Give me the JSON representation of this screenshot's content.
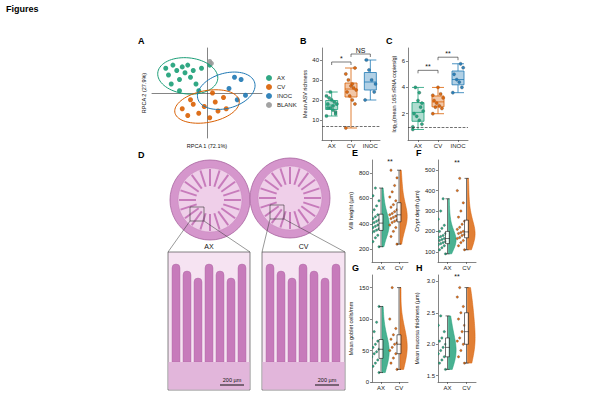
{
  "title": "Figures",
  "images": {
    "panel": "D",
    "labels": [
      "AX",
      "CV"
    ],
    "scale_bar": "200 µm"
  },
  "chart_data": [
    {
      "panel": "A",
      "type": "scatter",
      "x_label": "RPCA 1 (72.1%)",
      "y_label": "RPCA 2 (27.9%)",
      "xlim": [
        -1,
        1
      ],
      "ylim": [
        -1,
        1
      ],
      "xticks": [],
      "yticks": [],
      "tick_labels": false,
      "grid": false,
      "legend": "right",
      "series": [
        {
          "name": "AX",
          "color": "#1b9e77",
          "x": [
            -0.75,
            -0.7,
            -0.62,
            -0.55,
            -0.5,
            -0.45,
            -0.4,
            -0.35,
            -0.3,
            -0.25,
            -0.65,
            -0.2,
            -0.1,
            -0.5,
            -0.15,
            0.05
          ],
          "y": [
            0.55,
            0.4,
            0.62,
            0.5,
            0.3,
            0.58,
            0.45,
            0.62,
            0.35,
            0.5,
            0.2,
            0.2,
            0.55,
            0.05,
            0.05,
            0.62
          ],
          "ellipse": {
            "cx": -0.35,
            "cy": 0.38,
            "a": 0.55,
            "b": 0.4,
            "angle": -10
          }
        },
        {
          "name": "CV",
          "color": "#d95f02",
          "x": [
            -0.45,
            -0.35,
            -0.25,
            -0.15,
            -0.05,
            0.05,
            0.15,
            0.2,
            0.3,
            0.35,
            -0.3,
            0.1
          ],
          "y": [
            -0.35,
            -0.5,
            -0.25,
            -0.45,
            -0.3,
            -0.55,
            -0.2,
            -0.4,
            -0.1,
            -0.35,
            -0.15,
            0.0
          ],
          "ellipse": {
            "cx": 0.0,
            "cy": -0.3,
            "a": 0.6,
            "b": 0.35,
            "angle": 15
          }
        },
        {
          "name": "INOC",
          "color": "#1f78b4",
          "x": [
            0.4,
            0.55,
            0.62,
            0.7,
            0.5
          ],
          "y": [
            0.1,
            -0.15,
            0.3,
            -0.05,
            0.35
          ],
          "ellipse": {
            "cx": 0.35,
            "cy": 0.05,
            "a": 0.55,
            "b": 0.38,
            "angle": 25
          }
        },
        {
          "name": "BLANK",
          "color": "#999999",
          "x": [
            0.05,
            0.08
          ],
          "y": [
            0.7,
            0.66
          ]
        }
      ]
    },
    {
      "panel": "B",
      "type": "boxplot",
      "y_label": "Mean ASV richness",
      "categories": [
        "AX",
        "CV",
        "INOC"
      ],
      "colors": [
        "#1b9e77",
        "#d95f02",
        "#1f78b4"
      ],
      "values": [
        [
          12,
          14,
          15,
          16,
          18,
          18,
          19,
          20,
          21,
          22,
          13,
          17,
          24,
          16
        ],
        [
          6,
          18,
          20,
          22,
          24,
          25,
          26,
          27,
          30,
          33,
          36,
          28
        ],
        [
          20,
          24,
          30,
          35,
          40,
          28
        ]
      ],
      "hline": 7,
      "ylim": [
        0,
        46
      ],
      "yticks": [
        10,
        20,
        30,
        40
      ],
      "grid": false,
      "annotations": [
        {
          "text": "*",
          "from": "AX",
          "to": "CV",
          "y": 39
        },
        {
          "text": "NS",
          "from": "CV",
          "to": "INOC",
          "y": 43
        }
      ]
    },
    {
      "panel": "C",
      "type": "boxplot",
      "y_label": "log₁₀(mean 16S rRNA copies/g)",
      "categories": [
        "AX",
        "CV",
        "INOC"
      ],
      "colors": [
        "#1b9e77",
        "#d95f02",
        "#1f78b4"
      ],
      "values": [
        [
          0.8,
          1.2,
          1.5,
          1.8,
          2.0,
          2.2,
          2.5,
          3.0,
          4.0,
          1.0,
          2.8,
          3.6
        ],
        [
          2.0,
          2.4,
          2.6,
          2.8,
          3.0,
          3.2,
          3.5,
          4.0,
          2.5,
          3.4
        ],
        [
          3.6,
          4.0,
          4.4,
          4.6,
          5.0,
          5.5,
          5.8
        ]
      ],
      "hline": 1,
      "ylim": [
        0,
        7
      ],
      "yticks": [
        2,
        4,
        6
      ],
      "grid": false,
      "annotations": [
        {
          "text": "**",
          "from": "AX",
          "to": "CV",
          "y": 5.3
        },
        {
          "text": "**",
          "from": "CV",
          "to": "INOC",
          "y": 6.3
        }
      ]
    },
    {
      "panel": "E",
      "type": "raincloud",
      "y_label": "Villi height (µm)",
      "categories": [
        "AX",
        "CV"
      ],
      "colors": [
        "#1b9e77",
        "#d95f02"
      ],
      "values": [
        [
          220,
          260,
          290,
          310,
          330,
          340,
          350,
          360,
          370,
          380,
          390,
          400,
          410,
          420,
          430,
          440,
          455,
          470,
          490,
          510,
          540,
          580,
          620,
          680
        ],
        [
          240,
          300,
          340,
          370,
          390,
          410,
          420,
          430,
          440,
          450,
          460,
          470,
          480,
          495,
          510,
          530,
          550,
          580,
          610,
          650,
          700,
          760,
          820
        ]
      ],
      "ylim": [
        100,
        900
      ],
      "yticks": [
        200,
        400,
        600,
        800
      ],
      "grid": false,
      "annotations": [
        {
          "text": "**",
          "y": 860
        }
      ]
    },
    {
      "panel": "F",
      "type": "raincloud",
      "y_label": "Crypt depth (µm)",
      "categories": [
        "AX",
        "CV"
      ],
      "colors": [
        "#1b9e77",
        "#d95f02"
      ],
      "values": [
        [
          90,
          110,
          120,
          130,
          135,
          140,
          145,
          150,
          155,
          160,
          165,
          170,
          175,
          180,
          190,
          200,
          215,
          230,
          260,
          300,
          360
        ],
        [
          110,
          130,
          145,
          155,
          165,
          170,
          180,
          185,
          190,
          195,
          200,
          210,
          220,
          235,
          250,
          270,
          300,
          340,
          400,
          460
        ]
      ],
      "ylim": [
        50,
        550
      ],
      "yticks": [
        100,
        200,
        300,
        400,
        500
      ],
      "grid": false,
      "annotations": [
        {
          "text": "**",
          "y": 520
        }
      ]
    },
    {
      "panel": "G",
      "type": "raincloud",
      "y_label": "Mean goblet cells/mm",
      "categories": [
        "AX",
        "CV"
      ],
      "colors": [
        "#1b9e77",
        "#d95f02"
      ],
      "values": [
        [
          15,
          25,
          30,
          35,
          40,
          45,
          48,
          52,
          55,
          60,
          65,
          70,
          80,
          95,
          120
        ],
        [
          20,
          30,
          38,
          45,
          50,
          55,
          60,
          62,
          68,
          75,
          85,
          100,
          150
        ]
      ],
      "ylim": [
        0,
        170
      ],
      "yticks": [
        0,
        50,
        100,
        150
      ],
      "grid": false,
      "annotations": []
    },
    {
      "panel": "H",
      "type": "raincloud",
      "y_label": "Mean mucosa thickness (µm)",
      "categories": [
        "AX",
        "CV"
      ],
      "colors": [
        "#1b9e77",
        "#d95f02"
      ],
      "values": [
        [
          1.6,
          1.7,
          1.75,
          1.8,
          1.85,
          1.9,
          1.95,
          2.0,
          2.05,
          2.1,
          2.2,
          2.3,
          2.45
        ],
        [
          1.7,
          1.8,
          1.9,
          2.0,
          2.05,
          2.1,
          2.2,
          2.3,
          2.4,
          2.5,
          2.6,
          2.75,
          2.9
        ]
      ],
      "ylim": [
        1.4,
        3.1
      ],
      "yticks": [
        1.5,
        {
          "value": 2,
          "label": "2.0"
        },
        2.5,
        {
          "value": 3,
          "label": "3.0"
        }
      ],
      "grid": false,
      "annotations": [
        {
          "text": "**",
          "y": 3.02
        }
      ]
    }
  ]
}
